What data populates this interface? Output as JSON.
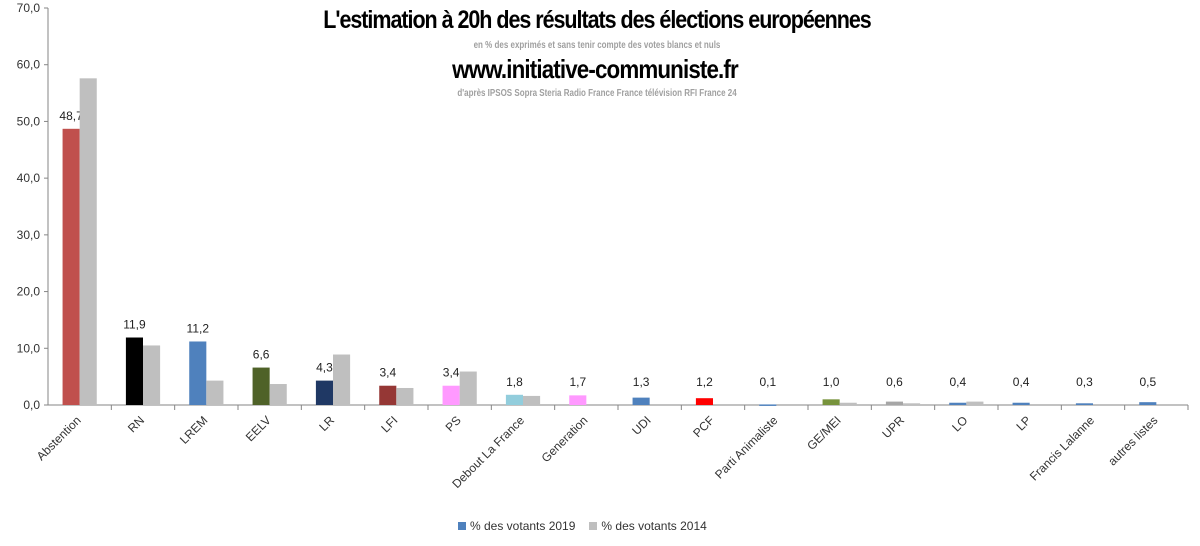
{
  "chart_data": {
    "type": "bar",
    "title": "L'estimation à 20h des résultats des élections européennes",
    "subtitle": "en % des exprimés et sans tenir compte des votes blancs et nuls",
    "site": "www.initiative-communiste.fr",
    "source": "d'après IPSOS Sopra Steria Radio France France télévision RFI France 24",
    "categories": [
      "Abstention",
      "RN",
      "LREM",
      "EELV",
      "LR",
      "LFI",
      "PS",
      "Debout La France",
      "Generation",
      "UDI",
      "PCF",
      "Parti Animaliste",
      "GE/MEI",
      "UPR",
      "LO",
      "LP",
      "Francis Lalanne",
      "autres listes"
    ],
    "series": [
      {
        "name": "% des votants 2019",
        "color": "#4f81bd",
        "values": [
          48.7,
          11.9,
          11.2,
          6.6,
          4.3,
          3.4,
          3.4,
          1.8,
          1.7,
          1.3,
          1.2,
          0.1,
          1.0,
          0.6,
          0.4,
          0.4,
          0.3,
          0.5
        ],
        "labels": [
          "48,7",
          "11,9",
          "11,2",
          "6,6",
          "4,3",
          "3,4",
          "3,4",
          "1,8",
          "1,7",
          "1,3",
          "1,2",
          "0,1",
          "1,0",
          "0,6",
          "0,4",
          "0,4",
          "0,3",
          "0,5"
        ],
        "bar_colors": [
          "#c0504d",
          "#000000",
          "#4f81bd",
          "#4f6228",
          "#1f3864",
          "#953735",
          "#ff99ff",
          "#92cddc",
          "#ff99ff",
          "#4f81bd",
          "#ff0000",
          "#4f81bd",
          "#77933c",
          "#a6a6a6",
          "#4f81bd",
          "#4f81bd",
          "#4f81bd",
          "#4f81bd"
        ]
      },
      {
        "name": "% des votants 2014",
        "color": "#bfbfbf",
        "values": [
          57.6,
          10.5,
          4.3,
          3.7,
          8.9,
          3.0,
          5.9,
          1.6,
          null,
          null,
          null,
          null,
          0.4,
          0.3,
          0.6,
          null,
          null,
          null
        ]
      }
    ],
    "ylim": [
      0,
      70
    ],
    "yticks": [
      "0,0",
      "10,0",
      "20,0",
      "30,0",
      "40,0",
      "50,0",
      "60,0",
      "70,0"
    ],
    "grid": false,
    "legend": "bottom"
  }
}
